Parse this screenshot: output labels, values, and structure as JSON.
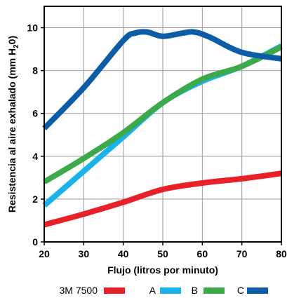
{
  "chart_data": {
    "type": "line",
    "xlabel": "Flujo (litros por minuto)",
    "ylabel_parts": [
      "Resistencia al aire exhalado (mm H",
      "2",
      "0)"
    ],
    "xlim": [
      20,
      80
    ],
    "ylim": [
      0,
      11
    ],
    "xticks": [
      20,
      30,
      40,
      50,
      60,
      70,
      80
    ],
    "yticks": [
      0,
      2,
      4,
      6,
      8,
      10
    ],
    "grid": true,
    "legend_position": "bottom",
    "series": [
      {
        "name": "3M 7500",
        "color": "#e8202a",
        "x": [
          20,
          30,
          40,
          50,
          60,
          70,
          80
        ],
        "y": [
          0.8,
          1.3,
          1.85,
          2.45,
          2.75,
          2.95,
          3.2
        ]
      },
      {
        "name": "A",
        "color": "#1ab2ea",
        "x": [
          20,
          30,
          40,
          50,
          60,
          70,
          80
        ],
        "y": [
          1.7,
          3.3,
          4.9,
          6.5,
          7.5,
          8.2,
          9.15
        ]
      },
      {
        "name": "B",
        "color": "#3daa49",
        "x": [
          20,
          30,
          40,
          50,
          60,
          70,
          80
        ],
        "y": [
          2.8,
          3.9,
          5.1,
          6.5,
          7.6,
          8.2,
          9.1
        ]
      },
      {
        "name": "C",
        "color": "#0d5ca8",
        "x": [
          20,
          30,
          40,
          43,
          46,
          50,
          55,
          58,
          62,
          70,
          80
        ],
        "y": [
          5.3,
          7.2,
          9.4,
          9.75,
          9.8,
          9.6,
          9.75,
          9.8,
          9.55,
          8.85,
          8.55
        ]
      }
    ]
  }
}
